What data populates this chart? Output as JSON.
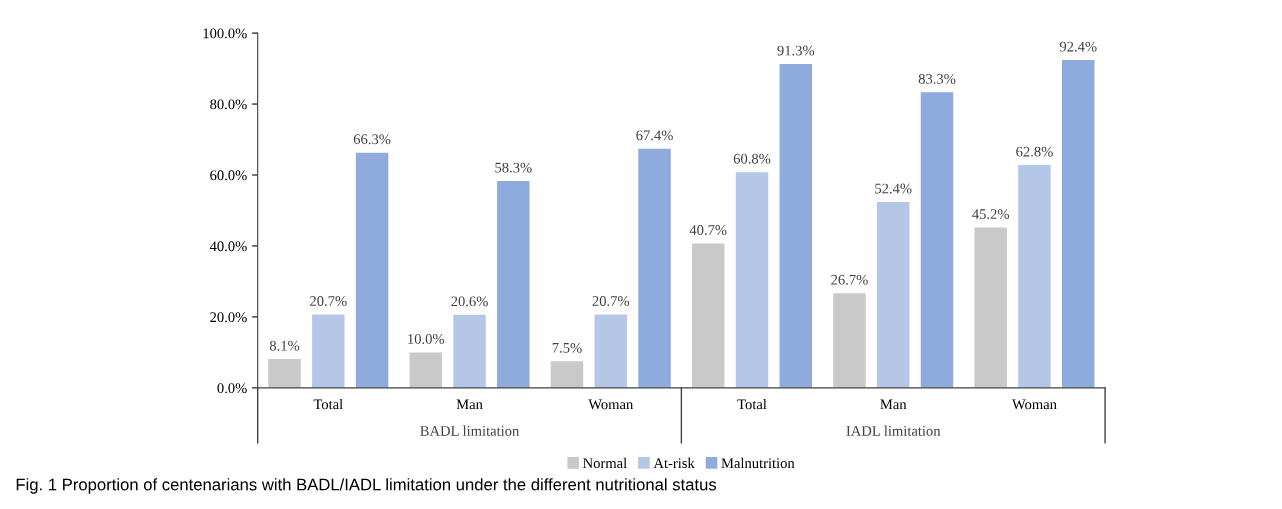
{
  "chart_data": {
    "type": "bar",
    "categories": [
      "Total",
      "Man",
      "Woman",
      "Total",
      "Man",
      "Woman"
    ],
    "series": [
      {
        "name": "Normal",
        "color": "#c9c9c9",
        "values": [
          8.1,
          10.0,
          7.5,
          40.7,
          26.7,
          45.2
        ],
        "value_labels": [
          "8.1%",
          "10.0%",
          "7.5%",
          "40.7%",
          "26.7%",
          "45.2%"
        ]
      },
      {
        "name": "At-risk",
        "color": "#b4c7e7",
        "values": [
          20.7,
          20.6,
          20.7,
          60.8,
          52.4,
          62.8
        ],
        "value_labels": [
          "20.7%",
          "20.6%",
          "20.7%",
          "60.8%",
          "52.4%",
          "62.8%"
        ]
      },
      {
        "name": "Malnutrition",
        "color": "#8faadc",
        "values": [
          66.3,
          58.3,
          67.4,
          91.3,
          83.3,
          92.4
        ],
        "value_labels": [
          "66.3%",
          "58.3%",
          "67.4%",
          "91.3%",
          "83.3%",
          "92.4%"
        ]
      }
    ],
    "ylim": [
      0,
      100
    ],
    "yticks": [
      {
        "value": 0,
        "label": "0.0%"
      },
      {
        "value": 20,
        "label": "20.0%"
      },
      {
        "value": 40,
        "label": "40.0%"
      },
      {
        "value": 60,
        "label": "60.0%"
      },
      {
        "value": 80,
        "label": "80.0%"
      },
      {
        "value": 100,
        "label": "100.0%"
      }
    ],
    "grid": false,
    "legend": "bottom",
    "annotations": [
      "BADL limitation",
      "IADL limitation",
      "Fig. 1 Proportion of centenarians with BADL/IADL limitation under the different nutritional status"
    ]
  }
}
